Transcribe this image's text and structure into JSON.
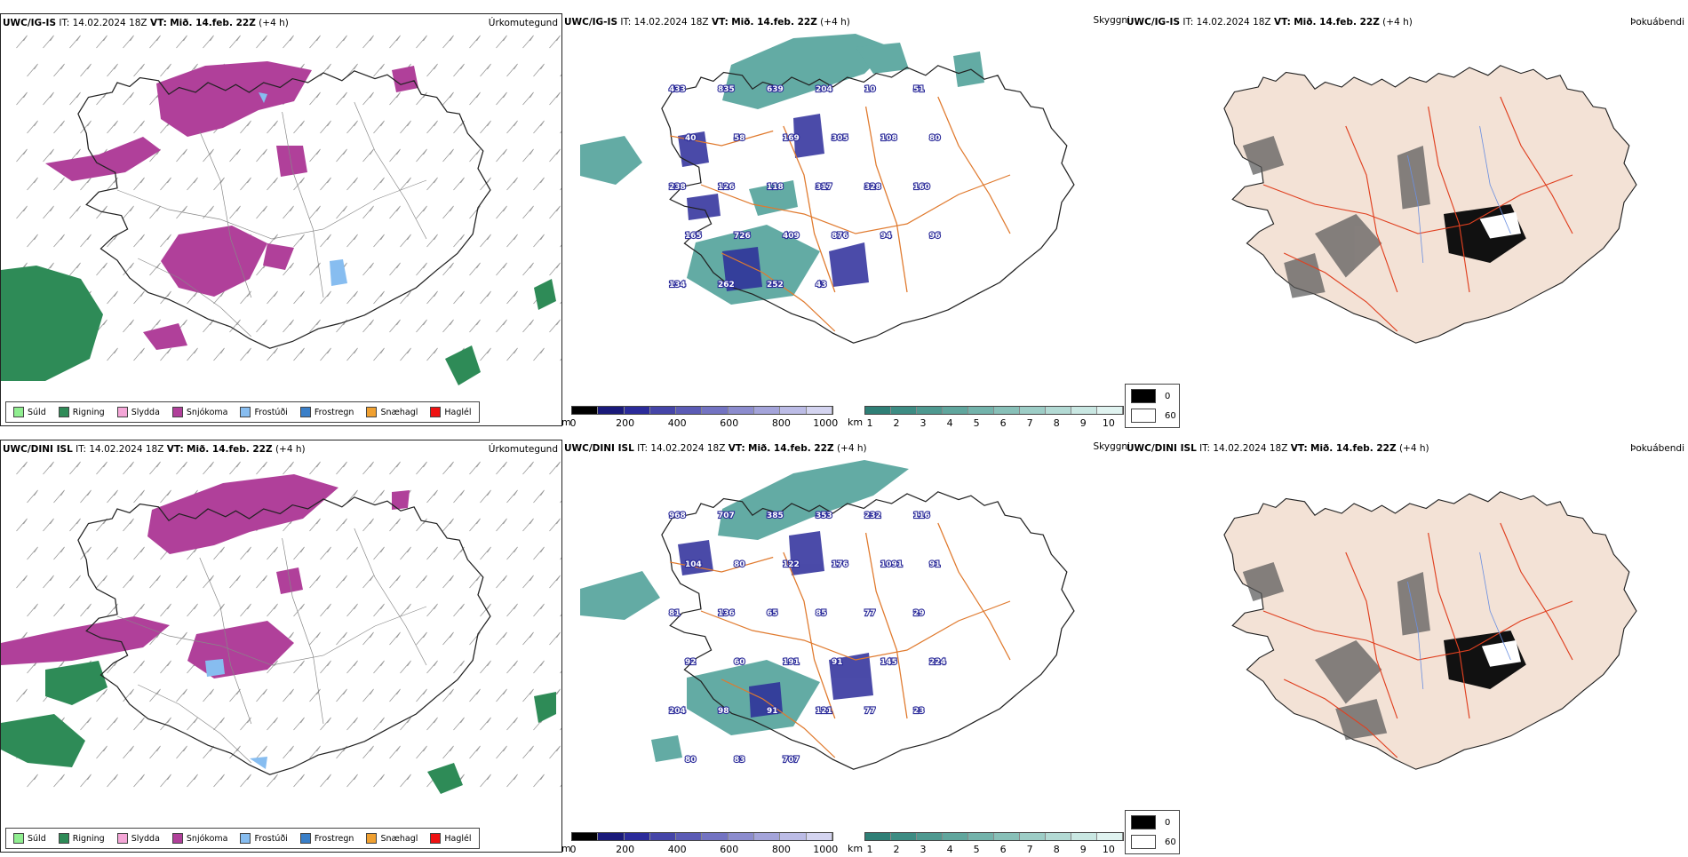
{
  "rows": [
    {
      "model": "UWC/IG-IS",
      "it_label": "IT:",
      "it_value": "14.02.2024 18Z",
      "vt_label": "VT:",
      "vt_value": "Mið. 14.feb. 22Z",
      "lead": "(+4 h)",
      "precip_title": "Úrkomutegund",
      "cloud_title": "Skyggni",
      "fog_title": "Þokuábendi"
    },
    {
      "model": "UWC/DINI ISL",
      "it_label": "IT:",
      "it_value": "14.02.2024 18Z",
      "vt_label": "VT:",
      "vt_value": "Mið. 14.feb. 22Z",
      "lead": "(+4 h)",
      "precip_title": "Úrkomutegund",
      "cloud_title": "Skyggni",
      "fog_title": "Þokuábendi"
    }
  ],
  "precip_legend": [
    {
      "label": "Súld",
      "color": "#90ee90"
    },
    {
      "label": "Rigning",
      "color": "#2e8b57"
    },
    {
      "label": "Slydda",
      "color": "#f4a6d7"
    },
    {
      "label": "Snjókoma",
      "color": "#b0409a"
    },
    {
      "label": "Frostúði",
      "color": "#87bdf0"
    },
    {
      "label": "Frostregn",
      "color": "#3a7fc8"
    },
    {
      "label": "Snæhagl",
      "color": "#f0a030"
    },
    {
      "label": "Haglél",
      "color": "#ee1111"
    }
  ],
  "cbar_m": {
    "unit": "m",
    "ticks": [
      "0",
      "200",
      "400",
      "600",
      "800",
      "1000"
    ]
  },
  "cbar_km": {
    "unit": "km",
    "ticks": [
      "1",
      "2",
      "3",
      "4",
      "5",
      "6",
      "7",
      "8",
      "9",
      "10"
    ]
  },
  "fog_legend": [
    {
      "label": "0",
      "color": "#000000"
    },
    {
      "label": "60",
      "color": "#ffffff"
    }
  ],
  "cloud_labels_top": [
    "433",
    "835",
    "639",
    "204",
    "10",
    "51",
    "40",
    "58",
    "169",
    "305",
    "108",
    "80",
    "238",
    "126",
    "118",
    "317",
    "328",
    "160",
    "165",
    "726",
    "409",
    "876",
    "94",
    "96",
    "134",
    "262",
    "252",
    "43"
  ],
  "cloud_labels_bottom": [
    "968",
    "707",
    "385",
    "353",
    "232",
    "116",
    "104",
    "80",
    "122",
    "176",
    "1091",
    "91",
    "81",
    "136",
    "65",
    "85",
    "77",
    "29",
    "92",
    "60",
    "191",
    "91",
    "145",
    "224",
    "204",
    "98",
    "91",
    "121",
    "77",
    "23",
    "80",
    "83",
    "707"
  ],
  "colors": {
    "snow": "#b0409a",
    "rain": "#2e8b57",
    "freezing": "#87bdf0",
    "teal": "#2f8f86",
    "ceiling": "#2b2b9a",
    "road": "#e07a2e",
    "fog_land": "#f3e2d6",
    "fog_road": "#e04020",
    "river": "#6b8fe0"
  }
}
